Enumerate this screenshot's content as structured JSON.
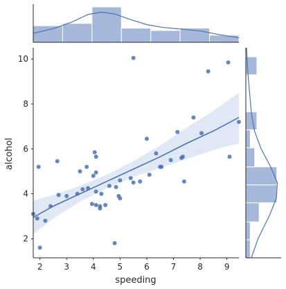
{
  "chart_data": {
    "type": "scatter",
    "title": "",
    "xlabel": "speeding",
    "ylabel": "alcohol",
    "xlim": [
      1.75,
      9.45
    ],
    "ylim": [
      1.15,
      10.5
    ],
    "xticks": [
      "2",
      "3",
      "4",
      "5",
      "6",
      "7",
      "8",
      "9"
    ],
    "yticks": [
      "2",
      "4",
      "6",
      "8",
      "10"
    ],
    "grid": false,
    "colors": {
      "points": "#4c72b0",
      "regression_line": "#4c72b0",
      "confidence_band": "#c9d6ec",
      "hist_bars": "#a6b8da",
      "kde": "#4c72b0"
    },
    "scatter_points": [
      {
        "x": 1.75,
        "y": 3.1
      },
      {
        "x": 1.9,
        "y": 2.9
      },
      {
        "x": 1.95,
        "y": 5.2
      },
      {
        "x": 2.0,
        "y": 1.6
      },
      {
        "x": 2.2,
        "y": 2.8
      },
      {
        "x": 2.4,
        "y": 3.45
      },
      {
        "x": 2.65,
        "y": 5.45
      },
      {
        "x": 2.7,
        "y": 3.95
      },
      {
        "x": 3.0,
        "y": 3.9
      },
      {
        "x": 3.4,
        "y": 4.0
      },
      {
        "x": 3.5,
        "y": 5.0
      },
      {
        "x": 3.6,
        "y": 4.2
      },
      {
        "x": 3.75,
        "y": 5.2
      },
      {
        "x": 3.8,
        "y": 4.25
      },
      {
        "x": 3.95,
        "y": 3.55
      },
      {
        "x": 4.0,
        "y": 4.8
      },
      {
        "x": 4.05,
        "y": 5.85
      },
      {
        "x": 4.1,
        "y": 5.65
      },
      {
        "x": 4.1,
        "y": 4.95
      },
      {
        "x": 4.1,
        "y": 4.1
      },
      {
        "x": 4.1,
        "y": 3.5
      },
      {
        "x": 4.25,
        "y": 3.35
      },
      {
        "x": 4.25,
        "y": 3.45
      },
      {
        "x": 4.3,
        "y": 4.0
      },
      {
        "x": 4.45,
        "y": 3.5
      },
      {
        "x": 4.6,
        "y": 4.35
      },
      {
        "x": 4.8,
        "y": 1.8
      },
      {
        "x": 4.85,
        "y": 4.3
      },
      {
        "x": 4.95,
        "y": 3.9
      },
      {
        "x": 5.0,
        "y": 3.8
      },
      {
        "x": 5.0,
        "y": 4.6
      },
      {
        "x": 5.4,
        "y": 4.7
      },
      {
        "x": 5.5,
        "y": 10.05
      },
      {
        "x": 5.5,
        "y": 4.5
      },
      {
        "x": 5.75,
        "y": 4.55
      },
      {
        "x": 6.0,
        "y": 6.45
      },
      {
        "x": 6.1,
        "y": 4.85
      },
      {
        "x": 6.35,
        "y": 5.8
      },
      {
        "x": 6.5,
        "y": 5.2
      },
      {
        "x": 6.55,
        "y": 5.2
      },
      {
        "x": 6.9,
        "y": 5.5
      },
      {
        "x": 7.15,
        "y": 6.75
      },
      {
        "x": 7.3,
        "y": 5.6
      },
      {
        "x": 7.35,
        "y": 5.65
      },
      {
        "x": 7.4,
        "y": 4.55
      },
      {
        "x": 7.75,
        "y": 7.4
      },
      {
        "x": 8.05,
        "y": 6.7
      },
      {
        "x": 8.3,
        "y": 9.45
      },
      {
        "x": 9.05,
        "y": 9.85
      },
      {
        "x": 9.1,
        "y": 5.65
      },
      {
        "x": 9.45,
        "y": 7.2
      }
    ],
    "regression": {
      "x": [
        1.75,
        2.5,
        3.5,
        4.5,
        5.5,
        6.5,
        7.5,
        8.5,
        9.45
      ],
      "fit": [
        2.95,
        3.45,
        4.0,
        4.55,
        5.1,
        5.65,
        6.25,
        6.8,
        7.4
      ],
      "lower": [
        2.2,
        2.9,
        3.65,
        4.25,
        4.75,
        5.15,
        5.55,
        5.95,
        6.25
      ],
      "upper": [
        3.7,
        3.95,
        4.35,
        4.85,
        5.45,
        6.15,
        6.95,
        7.7,
        8.5
      ]
    },
    "marginal_x": {
      "bins": [
        [
          1.75,
          2.85
        ],
        [
          2.85,
          3.95
        ],
        [
          3.95,
          5.05
        ],
        [
          5.05,
          6.15
        ],
        [
          6.15,
          7.25
        ],
        [
          7.25,
          8.35
        ],
        [
          8.35,
          9.45
        ]
      ],
      "counts": [
        7,
        8,
        15,
        6,
        5,
        6,
        3
      ],
      "kde": [
        {
          "x": 1.75,
          "y": 3.8
        },
        {
          "x": 2.5,
          "y": 5.8
        },
        {
          "x": 3.2,
          "y": 8.6
        },
        {
          "x": 3.8,
          "y": 11.8
        },
        {
          "x": 4.3,
          "y": 12.8
        },
        {
          "x": 4.8,
          "y": 12.0
        },
        {
          "x": 5.4,
          "y": 9.6
        },
        {
          "x": 6.0,
          "y": 7.5
        },
        {
          "x": 6.6,
          "y": 6.3
        },
        {
          "x": 7.3,
          "y": 5.6
        },
        {
          "x": 8.0,
          "y": 4.8
        },
        {
          "x": 8.7,
          "y": 3.3
        },
        {
          "x": 9.45,
          "y": 1.9
        }
      ]
    },
    "marginal_y": {
      "bins": [
        [
          1.15,
          1.95
        ],
        [
          1.95,
          2.75
        ],
        [
          2.75,
          3.6
        ],
        [
          3.6,
          4.4
        ],
        [
          4.4,
          5.2
        ],
        [
          5.2,
          6.05
        ],
        [
          6.05,
          6.85
        ],
        [
          6.85,
          7.65
        ],
        [
          7.65,
          8.5
        ],
        [
          8.5,
          9.3
        ],
        [
          9.3,
          10.1
        ]
      ],
      "counts": [
        2,
        2,
        6,
        14,
        14,
        4,
        2,
        5,
        0,
        0,
        5
      ],
      "kde": [
        {
          "y": 1.15,
          "x": 2.5
        },
        {
          "y": 2.0,
          "x": 5.5
        },
        {
          "y": 3.0,
          "x": 10.5
        },
        {
          "y": 3.8,
          "x": 13.8
        },
        {
          "y": 4.5,
          "x": 14.2
        },
        {
          "y": 5.2,
          "x": 11.2
        },
        {
          "y": 6.0,
          "x": 6.9
        },
        {
          "y": 6.8,
          "x": 3.9
        },
        {
          "y": 7.6,
          "x": 2.5
        },
        {
          "y": 8.5,
          "x": 1.7
        },
        {
          "y": 9.3,
          "x": 1.0
        },
        {
          "y": 10.5,
          "x": 0.3
        }
      ]
    }
  }
}
